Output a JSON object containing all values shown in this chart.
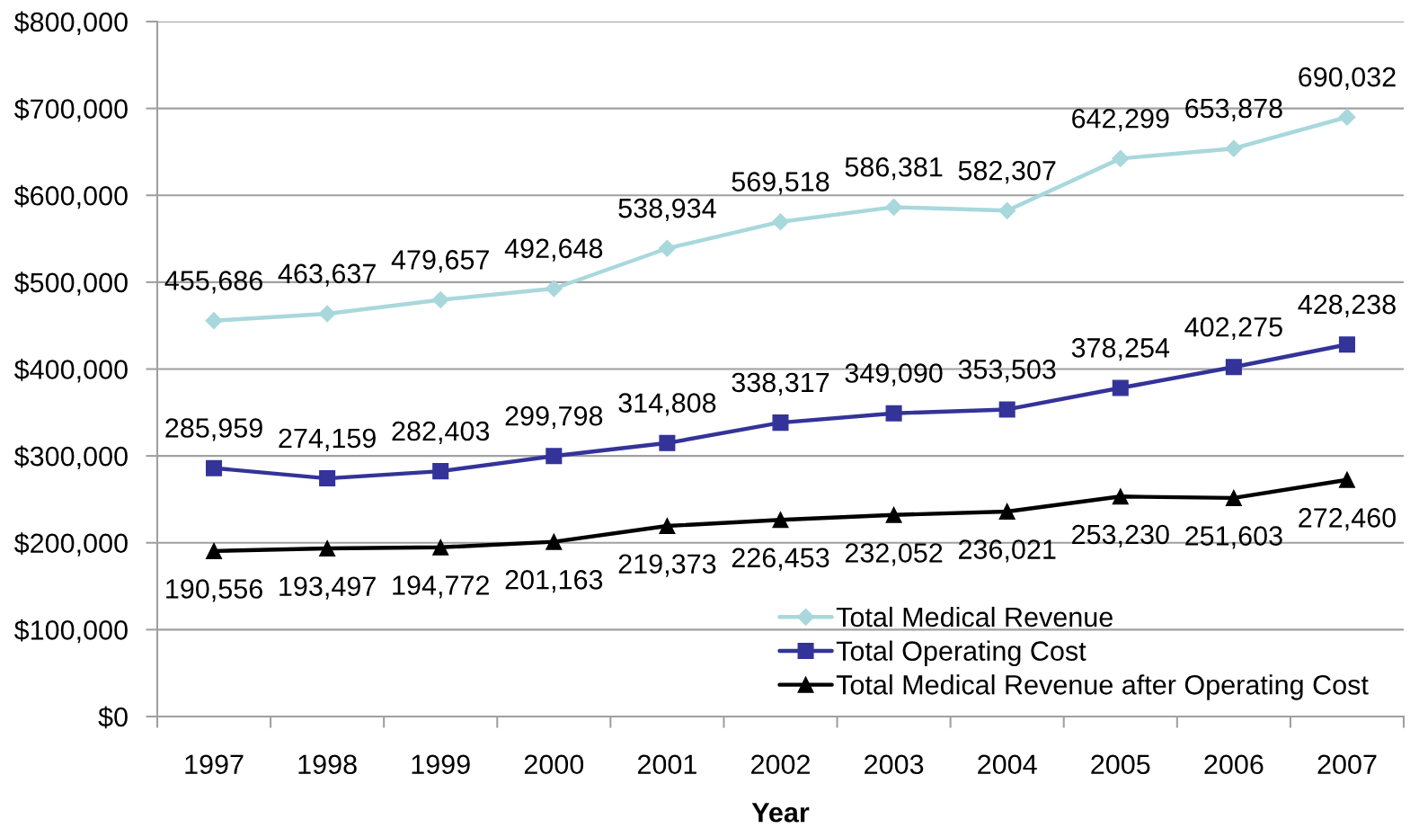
{
  "chart_data": {
    "type": "line",
    "xlabel": "Year",
    "categories": [
      "1997",
      "1998",
      "1999",
      "2000",
      "2001",
      "2002",
      "2003",
      "2004",
      "2005",
      "2006",
      "2007"
    ],
    "series": [
      {
        "name": "Total Medical Revenue",
        "color": "#a8d8dc",
        "marker": "diamond",
        "values": [
          455686,
          463637,
          479657,
          492648,
          538934,
          569518,
          586381,
          582307,
          642299,
          653878,
          690032
        ],
        "value_labels": [
          "455,686",
          "463,637",
          "479,657",
          "492,648",
          "538,934",
          "569,518",
          "586,381",
          "582,307",
          "642,299",
          "653,878",
          "690,032"
        ]
      },
      {
        "name": "Total Operating Cost",
        "color": "#333399",
        "marker": "square",
        "values": [
          285959,
          274159,
          282403,
          299798,
          314808,
          338317,
          349090,
          353503,
          378254,
          402275,
          428238
        ],
        "value_labels": [
          "285,959",
          "274,159",
          "282,403",
          "299,798",
          "314,808",
          "338,317",
          "349,090",
          "353,503",
          "378,254",
          "402,275",
          "428,238"
        ]
      },
      {
        "name": "Total Medical Revenue after Operating Cost",
        "color": "#000000",
        "marker": "triangle",
        "values": [
          190556,
          193497,
          194772,
          201163,
          219373,
          226453,
          232052,
          236021,
          253230,
          251603,
          272460
        ],
        "value_labels": [
          "190,556",
          "193,497",
          "194,772",
          "201,163",
          "219,373",
          "226,453",
          "232,052",
          "236,021",
          "253,230",
          "251,603",
          "272,460"
        ]
      }
    ],
    "ylim": [
      0,
      800000
    ],
    "yticks": [
      {
        "value": 0,
        "label": "$0"
      },
      {
        "value": 100000,
        "label": "$100,000"
      },
      {
        "value": 200000,
        "label": "$200,000"
      },
      {
        "value": 300000,
        "label": "$300,000"
      },
      {
        "value": 400000,
        "label": "$400,000"
      },
      {
        "value": 500000,
        "label": "$500,000"
      },
      {
        "value": 600000,
        "label": "$600,000"
      },
      {
        "value": 700000,
        "label": "$700,000"
      },
      {
        "value": 800000,
        "label": "$800,000"
      }
    ],
    "grid": "y",
    "legend": "bottom right",
    "line_style": "solid"
  }
}
